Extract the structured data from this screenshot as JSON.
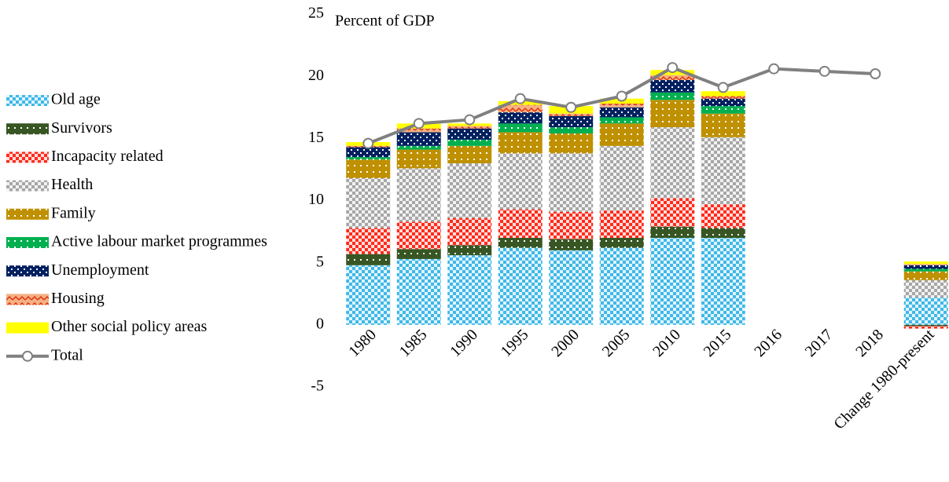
{
  "chart_data": {
    "type": "stacked-bar-line",
    "ylabel": "Percent of GDP",
    "categories": [
      "1980",
      "1985",
      "1990",
      "1995",
      "2000",
      "2005",
      "2010",
      "2015",
      "2016",
      "2017",
      "2018",
      "Change 1980-present"
    ],
    "ylim": [
      -5,
      25
    ],
    "yticks": [
      -5,
      0,
      5,
      10,
      15,
      20,
      25
    ],
    "series": [
      {
        "name": "Old age",
        "color": "#3fb8e8",
        "values": [
          4.8,
          5.3,
          5.6,
          6.2,
          6.0,
          6.2,
          7.0,
          7.0,
          null,
          null,
          null,
          2.2
        ]
      },
      {
        "name": "Survivors",
        "color": "#375623",
        "values": [
          0.9,
          0.8,
          0.8,
          0.8,
          0.9,
          0.8,
          0.9,
          0.8,
          null,
          null,
          null,
          -0.1
        ]
      },
      {
        "name": "Incapacity related",
        "color": "#ff2a1a",
        "values": [
          2.1,
          2.2,
          2.2,
          2.3,
          2.2,
          2.2,
          2.3,
          1.9,
          null,
          null,
          null,
          -0.2
        ]
      },
      {
        "name": "Health",
        "color": "#a6a6a6",
        "values": [
          4.0,
          4.3,
          4.4,
          4.5,
          4.7,
          5.2,
          5.7,
          5.4,
          null,
          null,
          null,
          1.4
        ]
      },
      {
        "name": "Family",
        "color": "#bf9000",
        "values": [
          1.5,
          1.5,
          1.4,
          1.7,
          1.6,
          1.8,
          2.2,
          1.9,
          null,
          null,
          null,
          0.7
        ]
      },
      {
        "name": "Active labour market programmes",
        "color": "#00b050",
        "values": [
          0.2,
          0.3,
          0.5,
          0.7,
          0.5,
          0.5,
          0.6,
          0.6,
          null,
          null,
          null,
          0.2
        ]
      },
      {
        "name": "Unemployment",
        "color": "#002060",
        "values": [
          0.8,
          1.1,
          0.9,
          0.9,
          0.9,
          0.8,
          1.0,
          0.6,
          null,
          null,
          null,
          0.3
        ]
      },
      {
        "name": "Housing",
        "color": "#f4b183",
        "values": [
          0.1,
          0.3,
          0.2,
          0.6,
          0.2,
          0.3,
          0.4,
          0.2,
          null,
          null,
          null,
          0.1
        ]
      },
      {
        "name": "Other social policy areas",
        "color": "#ffff00",
        "values": [
          0.3,
          0.4,
          0.2,
          0.3,
          0.6,
          0.4,
          0.4,
          0.4,
          null,
          null,
          null,
          0.2
        ]
      },
      {
        "name": "Total",
        "color": "#808080",
        "line": true,
        "values": [
          14.6,
          16.2,
          16.5,
          18.2,
          17.5,
          18.4,
          20.7,
          19.1,
          20.6,
          20.4,
          20.2,
          null
        ]
      }
    ]
  }
}
